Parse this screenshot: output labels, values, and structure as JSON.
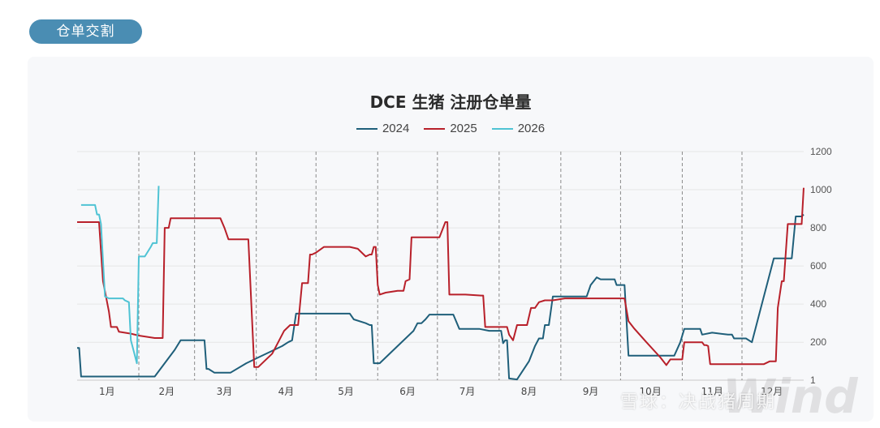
{
  "section_tag": "仓单交割",
  "watermark": "雪球：决战猪周期",
  "logo_text": "Wind",
  "colors": {
    "2024": "#1f5f7a",
    "2025": "#b8202a",
    "2026": "#4fc3d4"
  },
  "chart_data": {
    "type": "line",
    "title": "DCE 生猪 注册仓单量",
    "xlabel": "",
    "ylabel": "",
    "ylim": [
      1,
      1200
    ],
    "xlim": [
      1,
      366
    ],
    "yticks": [
      1,
      200,
      400,
      600,
      800,
      1000,
      1200
    ],
    "month_labels": [
      "1月",
      "2月",
      "3月",
      "4月",
      "5月",
      "6月",
      "7月",
      "8月",
      "9月",
      "10月",
      "11月",
      "12月"
    ],
    "month_label_days": [
      16,
      46,
      75,
      106,
      136,
      167,
      197,
      228,
      259,
      289,
      320,
      350
    ],
    "month_boundaries": [
      32,
      60,
      91,
      121,
      152,
      182,
      213,
      244,
      274,
      305,
      335
    ],
    "grid": true,
    "legend_position": "top-center",
    "series": [
      {
        "name": "2024",
        "points": [
          [
            1,
            170
          ],
          [
            2,
            170
          ],
          [
            3,
            20
          ],
          [
            12,
            20
          ],
          [
            18,
            20
          ],
          [
            25,
            20
          ],
          [
            37,
            20
          ],
          [
            40,
            20
          ],
          [
            50,
            160
          ],
          [
            53,
            210
          ],
          [
            55,
            210
          ],
          [
            63,
            210
          ],
          [
            65,
            210
          ],
          [
            66,
            60
          ],
          [
            67,
            60
          ],
          [
            70,
            40
          ],
          [
            78,
            40
          ],
          [
            86,
            90
          ],
          [
            92,
            120
          ],
          [
            98,
            150
          ],
          [
            104,
            180
          ],
          [
            107,
            200
          ],
          [
            109,
            210
          ],
          [
            111,
            350
          ],
          [
            114,
            350
          ],
          [
            124,
            350
          ],
          [
            132,
            350
          ],
          [
            136,
            350
          ],
          [
            138,
            350
          ],
          [
            140,
            320
          ],
          [
            146,
            300
          ],
          [
            148,
            290
          ],
          [
            149,
            290
          ],
          [
            150,
            90
          ],
          [
            153,
            90
          ],
          [
            162,
            180
          ],
          [
            170,
            260
          ],
          [
            172,
            300
          ],
          [
            174,
            300
          ],
          [
            176,
            320
          ],
          [
            178,
            345
          ],
          [
            188,
            345
          ],
          [
            190,
            345
          ],
          [
            193,
            270
          ],
          [
            203,
            270
          ],
          [
            208,
            260
          ],
          [
            214,
            260
          ],
          [
            215,
            195
          ],
          [
            216,
            210
          ],
          [
            217,
            210
          ],
          [
            218,
            10
          ],
          [
            222,
            5
          ],
          [
            228,
            100
          ],
          [
            231,
            180
          ],
          [
            233,
            220
          ],
          [
            235,
            220
          ],
          [
            236,
            290
          ],
          [
            238,
            290
          ],
          [
            240,
            440
          ],
          [
            248,
            440
          ],
          [
            256,
            440
          ],
          [
            257,
            440
          ],
          [
            259,
            500
          ],
          [
            262,
            540
          ],
          [
            264,
            530
          ],
          [
            268,
            530
          ],
          [
            270,
            530
          ],
          [
            271,
            530
          ],
          [
            272,
            500
          ],
          [
            276,
            500
          ],
          [
            278,
            130
          ],
          [
            285,
            130
          ],
          [
            298,
            130
          ],
          [
            301,
            130
          ],
          [
            304,
            200
          ],
          [
            306,
            270
          ],
          [
            312,
            270
          ],
          [
            314,
            270
          ],
          [
            315,
            240
          ],
          [
            320,
            250
          ],
          [
            328,
            240
          ],
          [
            330,
            240
          ],
          [
            331,
            220
          ],
          [
            333,
            220
          ],
          [
            337,
            220
          ],
          [
            340,
            200
          ],
          [
            351,
            640
          ],
          [
            354,
            640
          ],
          [
            358,
            640
          ],
          [
            360,
            640
          ],
          [
            362,
            860
          ],
          [
            365,
            860
          ],
          [
            366,
            870
          ]
        ]
      },
      {
        "name": "2025",
        "points": [
          [
            1,
            830
          ],
          [
            6,
            830
          ],
          [
            12,
            830
          ],
          [
            14,
            520
          ],
          [
            17,
            360
          ],
          [
            18,
            280
          ],
          [
            21,
            280
          ],
          [
            22,
            255
          ],
          [
            28,
            245
          ],
          [
            32,
            235
          ],
          [
            40,
            222
          ],
          [
            44,
            222
          ],
          [
            45,
            800
          ],
          [
            47,
            800
          ],
          [
            48,
            850
          ],
          [
            57,
            850
          ],
          [
            62,
            850
          ],
          [
            65,
            850
          ],
          [
            69,
            850
          ],
          [
            73,
            850
          ],
          [
            75,
            800
          ],
          [
            77,
            740
          ],
          [
            84,
            740
          ],
          [
            86,
            740
          ],
          [
            87,
            740
          ],
          [
            90,
            70
          ],
          [
            92,
            70
          ],
          [
            95,
            100
          ],
          [
            99,
            140
          ],
          [
            102,
            200
          ],
          [
            105,
            260
          ],
          [
            108,
            290
          ],
          [
            112,
            290
          ],
          [
            114,
            510
          ],
          [
            116,
            510
          ],
          [
            117,
            510
          ],
          [
            118,
            660
          ],
          [
            119,
            660
          ],
          [
            121,
            670
          ],
          [
            125,
            700
          ],
          [
            138,
            700
          ],
          [
            142,
            690
          ],
          [
            146,
            650
          ],
          [
            148,
            660
          ],
          [
            149,
            660
          ],
          [
            150,
            700
          ],
          [
            151,
            700
          ],
          [
            152,
            500
          ],
          [
            153,
            450
          ],
          [
            156,
            460
          ],
          [
            162,
            470
          ],
          [
            165,
            470
          ],
          [
            166,
            520
          ],
          [
            168,
            530
          ],
          [
            169,
            750
          ],
          [
            171,
            750
          ],
          [
            180,
            750
          ],
          [
            183,
            750
          ],
          [
            186,
            830
          ],
          [
            187,
            830
          ],
          [
            188,
            450
          ],
          [
            196,
            450
          ],
          [
            204,
            445
          ],
          [
            205,
            445
          ],
          [
            206,
            280
          ],
          [
            214,
            280
          ],
          [
            217,
            280
          ],
          [
            218,
            240
          ],
          [
            220,
            210
          ],
          [
            221,
            250
          ],
          [
            222,
            290
          ],
          [
            224,
            290
          ],
          [
            227,
            290
          ],
          [
            229,
            380
          ],
          [
            231,
            380
          ],
          [
            233,
            410
          ],
          [
            236,
            420
          ],
          [
            240,
            420
          ],
          [
            246,
            430
          ],
          [
            260,
            430
          ],
          [
            272,
            430
          ],
          [
            276,
            430
          ],
          [
            278,
            310
          ],
          [
            281,
            270
          ],
          [
            287,
            200
          ],
          [
            294,
            120
          ],
          [
            297,
            80
          ],
          [
            299,
            110
          ],
          [
            302,
            110
          ],
          [
            305,
            110
          ],
          [
            306,
            200
          ],
          [
            310,
            200
          ],
          [
            315,
            200
          ],
          [
            316,
            185
          ],
          [
            317,
            185
          ],
          [
            318,
            180
          ],
          [
            319,
            85
          ],
          [
            323,
            85
          ],
          [
            343,
            85
          ],
          [
            346,
            85
          ],
          [
            349,
            100
          ],
          [
            352,
            100
          ],
          [
            353,
            380
          ],
          [
            355,
            520
          ],
          [
            356,
            520
          ],
          [
            358,
            820
          ],
          [
            365,
            820
          ],
          [
            366,
            1010
          ]
        ]
      },
      {
        "name": "2026",
        "points": [
          [
            3,
            920
          ],
          [
            10,
            920
          ],
          [
            11,
            870
          ],
          [
            12,
            870
          ],
          [
            13,
            820
          ],
          [
            15,
            440
          ],
          [
            17,
            430
          ],
          [
            24,
            430
          ],
          [
            25,
            420
          ],
          [
            27,
            410
          ],
          [
            28,
            210
          ],
          [
            29,
            170
          ],
          [
            31,
            90
          ],
          [
            32,
            650
          ],
          [
            35,
            650
          ],
          [
            38,
            700
          ],
          [
            39,
            720
          ],
          [
            41,
            720
          ],
          [
            42,
            1020
          ]
        ]
      }
    ]
  }
}
